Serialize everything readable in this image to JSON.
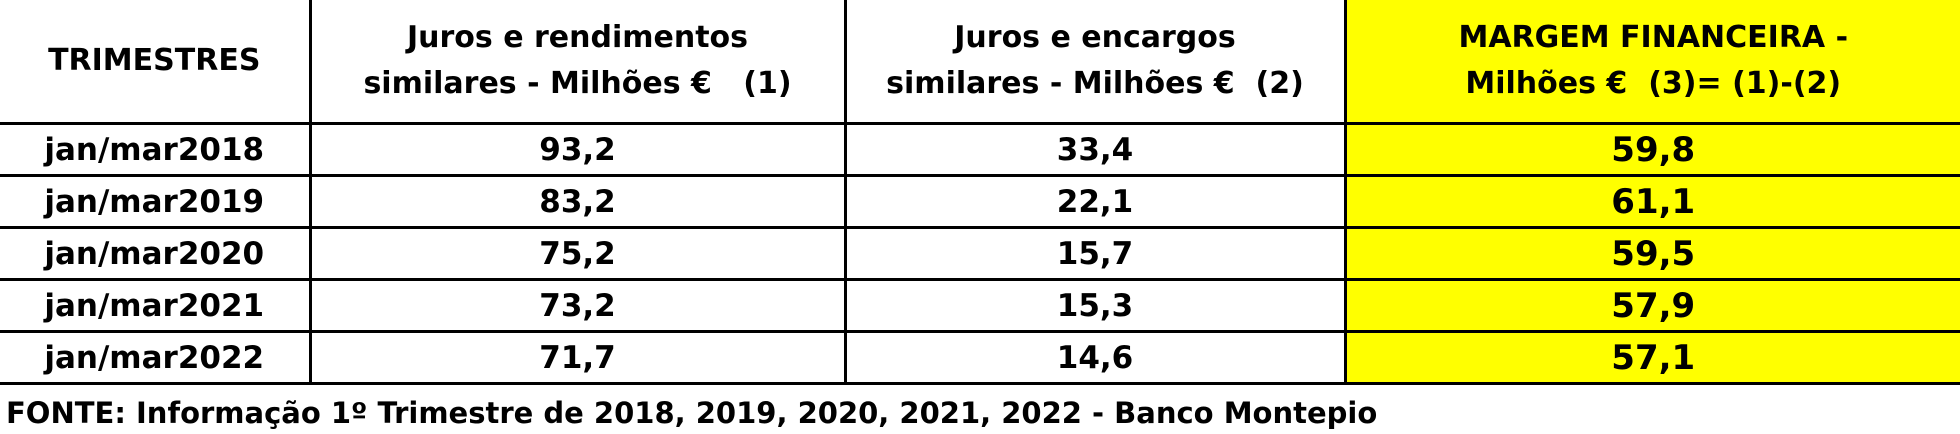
{
  "chart_data": {
    "type": "table",
    "columns": [
      "TRIMESTRES",
      "Juros e rendimentos similares - Milhões €   (1)",
      "Juros e encargos similares - Milhões €  (2)",
      "MARGEM FINANCEIRA - Milhões €  (3)= (1)-(2)"
    ],
    "header_lines": [
      [
        "TRIMESTRES"
      ],
      [
        "Juros e rendimentos",
        "similares - Milhões €   (1)"
      ],
      [
        "Juros e encargos",
        "similares - Milhões €  (2)"
      ],
      [
        "MARGEM FINANCEIRA -",
        "Milhões €  (3)= (1)-(2)"
      ]
    ],
    "rows": [
      [
        "jan/mar2018",
        "93,2",
        "33,4",
        "59,8"
      ],
      [
        "jan/mar2019",
        "83,2",
        "22,1",
        "61,1"
      ],
      [
        "jan/mar2020",
        "75,2",
        "15,7",
        "59,5"
      ],
      [
        "jan/mar2021",
        "73,2",
        "15,3",
        "57,9"
      ],
      [
        "jan/mar2022",
        "71,7",
        "14,6",
        "57,1"
      ]
    ],
    "highlight_color": "#ffff00"
  },
  "source": "FONTE: Informação 1º Trimestre de 2018, 2019, 2020, 2021, 2022 - Banco Montepio"
}
